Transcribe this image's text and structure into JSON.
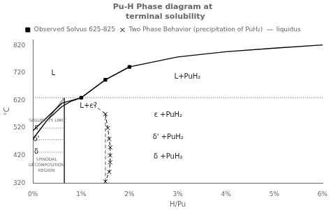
{
  "chart_data": {
    "type": "line",
    "title": [
      "Pu-H Phase diagram at",
      "  terminal solubility"
    ],
    "x_label": "H/Pu",
    "y_label": "°C",
    "xlim": [
      0,
      6
    ],
    "ylim": [
      320,
      840
    ],
    "xticks": [
      {
        "value": 0,
        "label": "0%"
      },
      {
        "value": 1,
        "label": "1%"
      },
      {
        "value": 2,
        "label": "2%"
      },
      {
        "value": 3,
        "label": "3%"
      },
      {
        "value": 4,
        "label": "4%"
      },
      {
        "value": 5,
        "label": "5%"
      },
      {
        "value": 6,
        "label": "6%"
      }
    ],
    "yticks": [
      320,
      420,
      520,
      620,
      720,
      820
    ],
    "grid": false,
    "legend": "top",
    "series": [
      {
        "x": [
          0.0,
          0.6,
          1.0,
          1.5,
          2.0,
          3.0,
          4.0,
          5.0,
          6.0
        ],
        "values": [
          510,
          610,
          630,
          695,
          742,
          778,
          797,
          810,
          822
        ],
        "color": "#000000",
        "marker": "none",
        "line_style": "solid"
      },
      {
        "name": "Observed Solvus 625-825",
        "x": [
          1.0,
          1.5,
          2.0
        ],
        "values": [
          630,
          695,
          742
        ],
        "color": "#000000",
        "marker": "square",
        "line_style": "solid"
      },
      {
        "name": "Two Phase Behavior (precipitation of PuH₂)",
        "x": [
          1.5,
          1.55,
          1.58,
          1.6,
          1.6,
          1.6,
          1.58,
          1.5
        ],
        "values": [
          570,
          520,
          480,
          450,
          420,
          395,
          360,
          325
        ],
        "color": "#000000",
        "marker": "x",
        "line_style": "dashed"
      },
      {
        "name": "liquidus",
        "x": [
          0,
          6
        ],
        "values": [
          630,
          630
        ],
        "color": "#808080",
        "marker": "none",
        "line_style": "dotted"
      },
      {
        "x": [
          0.0,
          0.3,
          0.6,
          0.8,
          1.0
        ],
        "values": [
          480,
          550,
          598,
          618,
          630
        ],
        "color": "#000000",
        "marker": "none",
        "line_style": "solid"
      },
      {
        "x": [
          1.5,
          1.5
        ],
        "values": [
          325,
          572
        ],
        "color": "#808080",
        "marker": "none",
        "line_style": "dashed"
      },
      {
        "x": [
          0.0,
          0.65
        ],
        "values": [
          480,
          630
        ],
        "color": "#808080",
        "marker": "none",
        "line_style": "solid"
      },
      {
        "x": [
          0.65,
          0.65
        ],
        "values": [
          320,
          630
        ],
        "color": "#000000",
        "marker": "none",
        "line_style": "solid"
      },
      {
        "x": [
          0.0,
          0.65
        ],
        "values": [
          520,
          520
        ],
        "color": "#808080",
        "marker": "none",
        "line_style": "dotted"
      },
      {
        "x": [
          0.0,
          0.65
        ],
        "values": [
          478,
          478
        ],
        "color": "#808080",
        "marker": "none",
        "line_style": "dotted"
      },
      {
        "x": [
          0.0,
          0.65
        ],
        "values": [
          432,
          432
        ],
        "color": "#808080",
        "marker": "none",
        "line_style": "dotted"
      },
      {
        "x": [
          1.25,
          1.5
        ],
        "values": [
          605,
          572
        ],
        "color": "#808080",
        "marker": "none",
        "line_style": "dashed"
      }
    ],
    "annotations": [
      {
        "text": "SOLUBILITY LIMIT",
        "x": 0.3,
        "y": 548
      },
      {
        "text": "L",
        "x": 0.42,
        "y": 718
      },
      {
        "text": "L+PuH₂",
        "x": 3.2,
        "y": 705
      },
      {
        "text": "L+ε?",
        "x": 1.15,
        "y": 600
      },
      {
        "text": "ε +PuH₂",
        "x": 2.8,
        "y": 568
      },
      {
        "text": "δ' +PuH₂",
        "x": 2.8,
        "y": 487
      },
      {
        "text": "δ +PuH₂",
        "x": 2.8,
        "y": 415
      },
      {
        "text": "ε",
        "x": 0.07,
        "y": 522
      },
      {
        "text": "δ'",
        "x": 0.07,
        "y": 478
      },
      {
        "text": "δ",
        "x": 0.07,
        "y": 432
      },
      {
        "text": [
          "SPINODAL",
          "DECOMPOSITION",
          "REGION"
        ],
        "x": 0.28,
        "y": 385
      }
    ]
  }
}
